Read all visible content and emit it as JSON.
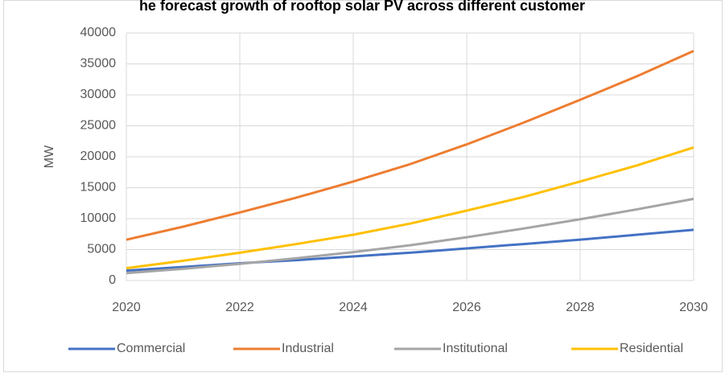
{
  "chart_data": {
    "type": "line",
    "title": "he forecast growth of rooftop solar PV across different customer",
    "y_label": "MW",
    "x": [
      2020,
      2021,
      2022,
      2023,
      2024,
      2025,
      2026,
      2027,
      2028,
      2029,
      2030
    ],
    "xlim": [
      2020,
      2030
    ],
    "xticks": [
      2020,
      2022,
      2024,
      2026,
      2028,
      2030
    ],
    "ylim": [
      0,
      40000
    ],
    "yticks": [
      0,
      5000,
      10000,
      15000,
      20000,
      25000,
      30000,
      35000,
      40000
    ],
    "grid": true,
    "legend": "bottom",
    "series": [
      {
        "name": "Commercial",
        "color": "#4472c4",
        "values": [
          1600,
          2200,
          2800,
          3300,
          3900,
          4500,
          5200,
          5900,
          6600,
          7400,
          8200
        ]
      },
      {
        "name": "Industrial",
        "color": "#ed7d31",
        "values": [
          6600,
          8700,
          11000,
          13400,
          16000,
          18800,
          22000,
          25500,
          29200,
          33000,
          37100
        ]
      },
      {
        "name": "Institutional",
        "color": "#a5a5a5",
        "values": [
          1200,
          1900,
          2700,
          3600,
          4600,
          5700,
          7000,
          8400,
          9900,
          11500,
          13200
        ]
      },
      {
        "name": "Residential",
        "color": "#ffc000",
        "values": [
          2000,
          3200,
          4500,
          5900,
          7400,
          9200,
          11300,
          13500,
          16000,
          18600,
          21500
        ]
      }
    ]
  }
}
